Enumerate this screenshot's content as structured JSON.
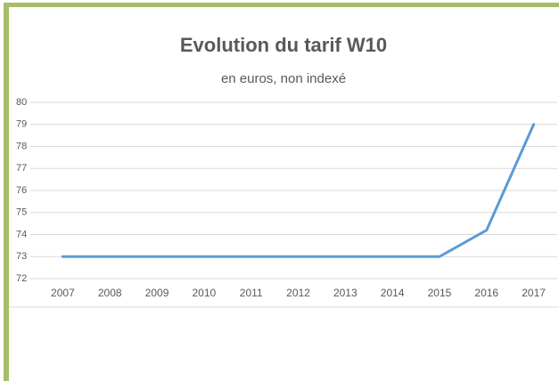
{
  "chart_data": {
    "type": "line",
    "title": "Evolution du tarif W10",
    "subtitle": "en euros, non indexé",
    "categories": [
      "2007",
      "2008",
      "2009",
      "2010",
      "2011",
      "2012",
      "2013",
      "2014",
      "2015",
      "2016",
      "2017"
    ],
    "series": [
      {
        "name": "W10",
        "color": "#5b9bd5",
        "values": [
          73,
          73,
          73,
          73,
          73,
          73,
          73,
          73,
          73,
          74.2,
          79
        ]
      }
    ],
    "ylim": [
      72,
      80
    ],
    "yticks": [
      72,
      73,
      74,
      75,
      76,
      77,
      78,
      79,
      80
    ],
    "grid": true
  }
}
